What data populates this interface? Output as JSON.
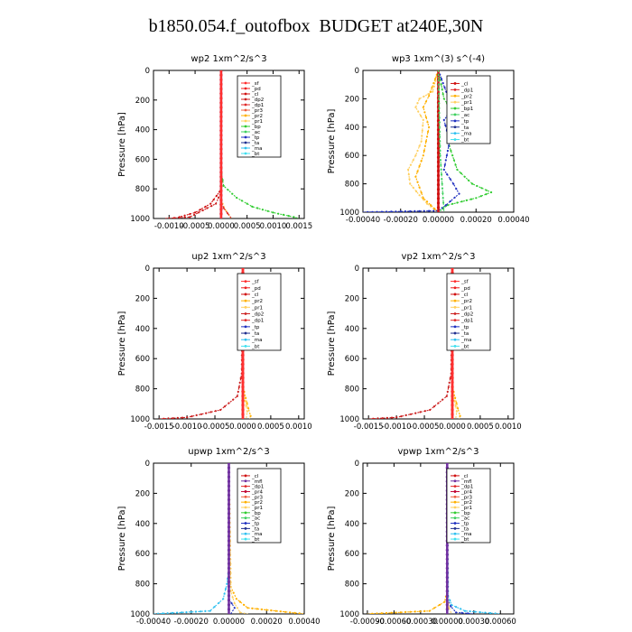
{
  "title": "b1850.054.f_outofbox  BUDGET at240E,30N",
  "colors": {
    "sf": "#ff3030",
    "pd": "#ee2020",
    "cl": "#d01010",
    "mfl": "#7030a0",
    "dp2": "#cc2020",
    "dp1": "#e02828",
    "pr4": "#c00030",
    "pr3": "#ee6040",
    "pr2": "#ffb000",
    "pr1": "#ffd060",
    "bp": "#30cc30",
    "bp1": "#30cc30",
    "ac": "#40d060",
    "tp": "#2030c0",
    "ta": "#203090",
    "ma": "#30c0f0",
    "bt": "#40e0f0"
  },
  "chart_data": [
    {
      "type": "line",
      "title": "wp2   1xm^2/s^3",
      "ylabel": "Pressure  [hPa]",
      "ylim": [
        1000,
        0
      ],
      "xlim": [
        -0.0013,
        0.0016
      ],
      "xticks": [
        -0.001,
        -0.0005,
        0.0,
        0.0005,
        0.001,
        0.0015
      ],
      "xticklabels": [
        "-0.0010",
        "-0.0005",
        "0.0000",
        "0.0005",
        "0.0010",
        "0.0015"
      ],
      "yticks": [
        0,
        200,
        400,
        600,
        800,
        1000
      ],
      "legend_position": "top-right",
      "legend": [
        "_sf",
        "_pd",
        "_cl",
        "_dp2",
        "_dp1",
        "_pr3",
        "_pr2",
        "_pr1",
        "_bp",
        "_ac",
        "_tp",
        "_ta",
        "_ma",
        "_bt"
      ],
      "series": [
        {
          "key": "bp",
          "points": [
            [
              0,
              0
            ],
            [
              0,
              600
            ],
            [
              1e-05,
              700
            ],
            [
              5e-05,
              780
            ],
            [
              0.0003,
              860
            ],
            [
              0.0006,
              920
            ],
            [
              0.001,
              960
            ],
            [
              0.0014,
              990
            ],
            [
              0.0015,
              1000
            ]
          ]
        },
        {
          "key": "pr1",
          "points": [
            [
              0,
              0
            ],
            [
              0,
              850
            ],
            [
              3e-05,
              900
            ],
            [
              0.0001,
              950
            ],
            [
              0.0002,
              1000
            ]
          ]
        },
        {
          "key": "cl",
          "points": [
            [
              0,
              0
            ],
            [
              0,
              780
            ],
            [
              -3e-05,
              820
            ],
            [
              -0.0002,
              900
            ],
            [
              -0.0005,
              960
            ],
            [
              -0.0009,
              1000
            ]
          ]
        },
        {
          "key": "dp2",
          "points": [
            [
              0,
              0
            ],
            [
              0,
              820
            ],
            [
              -0.0001,
              900
            ],
            [
              -0.0006,
              990
            ],
            [
              -0.0011,
              1000
            ]
          ]
        },
        {
          "key": "dp1",
          "points": [
            [
              0,
              0
            ],
            [
              0,
              880
            ],
            [
              5e-05,
              930
            ],
            [
              0.0002,
              1000
            ]
          ]
        },
        {
          "key": "pr3",
          "points": [
            [
              0,
              0
            ],
            [
              0,
              1000
            ]
          ]
        },
        {
          "key": "mfl",
          "points": [
            [
              0,
              0
            ],
            [
              0,
              1000
            ]
          ]
        },
        {
          "key": "sf",
          "points": [
            [
              0,
              0
            ],
            [
              0,
              1000
            ]
          ]
        }
      ]
    },
    {
      "type": "line",
      "title": "wp3   1xm^(3) s^(-4)",
      "ylabel": "Pressure  [hPa]",
      "ylim": [
        1000,
        0
      ],
      "xlim": [
        -0.0004,
        0.0004
      ],
      "xticks": [
        -0.0004,
        -0.0002,
        0.0,
        0.0002,
        0.0004
      ],
      "xticklabels": [
        "-0.00040",
        "-0.00020",
        "0.00000",
        "0.00020",
        "0.00040"
      ],
      "yticks": [
        0,
        200,
        400,
        600,
        800,
        1000
      ],
      "legend_position": "top-right",
      "legend": [
        "_cl",
        "_dp1",
        "_pr2",
        "_pr1",
        "_bp1",
        "_ac",
        "_tp",
        "_ta",
        "_ma",
        "_bt"
      ],
      "series": [
        {
          "key": "pr1",
          "points": [
            [
              0,
              0
            ],
            [
              -3e-05,
              150
            ],
            [
              -0.0001,
              200
            ],
            [
              -0.00012,
              260
            ],
            [
              -8e-05,
              350
            ],
            [
              -9e-05,
              500
            ],
            [
              -0.00012,
              600
            ],
            [
              -0.00016,
              700
            ],
            [
              -0.00015,
              800
            ],
            [
              -0.0001,
              880
            ],
            [
              -6e-05,
              940
            ],
            [
              0,
              1000
            ]
          ]
        },
        {
          "key": "pr2",
          "points": [
            [
              0,
              0
            ],
            [
              -5e-05,
              180
            ],
            [
              -8e-05,
              260
            ],
            [
              -5e-05,
              400
            ],
            [
              -8e-05,
              600
            ],
            [
              -0.00012,
              750
            ],
            [
              -8e-05,
              900
            ],
            [
              0,
              1000
            ]
          ]
        },
        {
          "key": "bp1",
          "points": [
            [
              0,
              0
            ],
            [
              3e-05,
              200
            ],
            [
              8e-05,
              300
            ],
            [
              5e-05,
              500
            ],
            [
              0.0001,
              700
            ],
            [
              0.00018,
              800
            ],
            [
              0.00028,
              860
            ],
            [
              0.0002,
              900
            ],
            [
              5e-05,
              950
            ],
            [
              0,
              1000
            ]
          ]
        },
        {
          "key": "tp",
          "points": [
            [
              0,
              0
            ],
            [
              5e-05,
              180
            ],
            [
              0.0001,
              230
            ],
            [
              3e-05,
              350
            ],
            [
              6e-05,
              500
            ],
            [
              3e-05,
              700
            ],
            [
              8e-05,
              800
            ],
            [
              0.00011,
              870
            ],
            [
              4e-05,
              950
            ],
            [
              0,
              990
            ],
            [
              -0.0004,
              1000
            ]
          ]
        },
        {
          "key": "cl",
          "points": [
            [
              0,
              0
            ],
            [
              0,
              1000
            ]
          ]
        },
        {
          "key": "ac",
          "points": [
            [
              0,
              0
            ],
            [
              1e-05,
              600
            ],
            [
              3e-05,
              1000
            ]
          ]
        }
      ]
    },
    {
      "type": "line",
      "title": "up2   1xm^2/s^3",
      "ylabel": "Pressure  [hPa]",
      "ylim": [
        1000,
        0
      ],
      "xlim": [
        -0.0016,
        0.0011
      ],
      "xticks": [
        -0.0015,
        -0.001,
        -0.0005,
        0.0,
        0.0005,
        0.001
      ],
      "xticklabels": [
        "-0.0015",
        "-0.0010",
        "-0.0005",
        "0.0000",
        "0.0005",
        "0.0010"
      ],
      "yticks": [
        0,
        200,
        400,
        600,
        800,
        1000
      ],
      "legend_position": "top-right",
      "legend": [
        "_sf",
        "_pd",
        "_cl",
        "_pr2",
        "_pr1",
        "_dp2",
        "_dp1",
        "_tp",
        "_ta",
        "_ma",
        "_bt"
      ],
      "series": [
        {
          "key": "dp2",
          "points": [
            [
              0,
              0
            ],
            [
              -2e-05,
              700
            ],
            [
              -0.0001,
              850
            ],
            [
              -0.0004,
              940
            ],
            [
              -0.001,
              990
            ],
            [
              -0.0015,
              1000
            ]
          ]
        },
        {
          "key": "pr2",
          "points": [
            [
              0,
              0
            ],
            [
              0,
              780
            ],
            [
              5e-05,
              860
            ],
            [
              0.0001,
              930
            ],
            [
              0.00014,
              980
            ],
            [
              0.00012,
              1000
            ]
          ]
        },
        {
          "key": "pr1",
          "points": [
            [
              0,
              0
            ],
            [
              0,
              800
            ],
            [
              4e-05,
              880
            ],
            [
              8e-05,
              950
            ],
            [
              6e-05,
              1000
            ]
          ]
        },
        {
          "key": "cl",
          "points": [
            [
              0,
              0
            ],
            [
              0,
              1000
            ]
          ]
        },
        {
          "key": "sf",
          "points": [
            [
              0,
              0
            ],
            [
              0,
              1000
            ]
          ]
        }
      ]
    },
    {
      "type": "line",
      "title": "vp2   1xm^2/s^3",
      "ylabel": "Pressure  [hPa]",
      "ylim": [
        1000,
        0
      ],
      "xlim": [
        -0.0016,
        0.0011
      ],
      "xticks": [
        -0.0015,
        -0.001,
        -0.0005,
        0.0,
        0.0005,
        0.001
      ],
      "xticklabels": [
        "-0.0015",
        "-0.0010",
        "-0.0005",
        "0.0000",
        "0.0005",
        "0.0010"
      ],
      "yticks": [
        0,
        200,
        400,
        600,
        800,
        1000
      ],
      "legend_position": "top-right",
      "legend": [
        "_sf",
        "_pd",
        "_cl",
        "_pr2",
        "_pr1",
        "_dp2",
        "_dp1",
        "_tp",
        "_ta",
        "_ma",
        "_bt"
      ],
      "series": [
        {
          "key": "dp2",
          "points": [
            [
              0,
              0
            ],
            [
              -2e-05,
              700
            ],
            [
              -0.0001,
              850
            ],
            [
              -0.0004,
              940
            ],
            [
              -0.001,
              990
            ],
            [
              -0.0015,
              1000
            ]
          ]
        },
        {
          "key": "pr2",
          "points": [
            [
              0,
              0
            ],
            [
              0,
              780
            ],
            [
              5e-05,
              860
            ],
            [
              0.0001,
              930
            ],
            [
              0.00014,
              980
            ],
            [
              0.00012,
              1000
            ]
          ]
        },
        {
          "key": "pr1",
          "points": [
            [
              0,
              0
            ],
            [
              0,
              800
            ],
            [
              4e-05,
              880
            ],
            [
              8e-05,
              950
            ],
            [
              6e-05,
              1000
            ]
          ]
        },
        {
          "key": "cl",
          "points": [
            [
              0,
              0
            ],
            [
              0,
              1000
            ]
          ]
        },
        {
          "key": "sf",
          "points": [
            [
              0,
              0
            ],
            [
              0,
              1000
            ]
          ]
        }
      ]
    },
    {
      "type": "line",
      "title": "upwp   1xm^2/s^3",
      "ylabel": "Pressure  [hPa]",
      "ylim": [
        1000,
        0
      ],
      "xlim": [
        -0.0004,
        0.0004
      ],
      "xticks": [
        -0.0004,
        -0.0002,
        0.0,
        0.0002,
        0.0004
      ],
      "xticklabels": [
        "-0.00040",
        "-0.00020",
        "0.00000",
        "0.00020",
        "0.00040"
      ],
      "yticks": [
        0,
        200,
        400,
        600,
        800,
        1000
      ],
      "legend_position": "top-right",
      "legend": [
        "_cl",
        "_mfl",
        "_dp1",
        "_pr4",
        "_pr3",
        "_pr2",
        "_pr1",
        "_bp",
        "_ac",
        "_tp",
        "_ta",
        "_ma",
        "_bt"
      ],
      "series": [
        {
          "key": "ma",
          "points": [
            [
              0,
              0
            ],
            [
              0,
              700
            ],
            [
              -1e-05,
              800
            ],
            [
              -3e-05,
              900
            ],
            [
              -0.0001,
              980
            ],
            [
              -0.0004,
              1000
            ]
          ]
        },
        {
          "key": "pr2",
          "points": [
            [
              0,
              0
            ],
            [
              1e-05,
              820
            ],
            [
              4e-05,
              900
            ],
            [
              0.0001,
              960
            ],
            [
              0.0004,
              1000
            ]
          ]
        },
        {
          "key": "pr1",
          "points": [
            [
              0,
              0
            ],
            [
              1e-05,
              850
            ],
            [
              3e-05,
              930
            ],
            [
              6e-05,
              990
            ],
            [
              0.0001,
              1000
            ]
          ]
        },
        {
          "key": "tp",
          "points": [
            [
              0,
              0
            ],
            [
              0,
              900
            ],
            [
              3e-05,
              960
            ],
            [
              1e-05,
              1000
            ]
          ]
        },
        {
          "key": "mfl",
          "points": [
            [
              0,
              0
            ],
            [
              0,
              1000
            ]
          ]
        }
      ]
    },
    {
      "type": "line",
      "title": "vpwp   1xm^2/s^3",
      "ylabel": "Pressure  [hPa]",
      "ylim": [
        1000,
        0
      ],
      "xlim": [
        -0.00095,
        0.00075
      ],
      "xticks": [
        -0.0009,
        -0.0006,
        -0.0003,
        0.0,
        0.0003,
        0.0006
      ],
      "xticklabels": [
        "-0.00090",
        "-0.00060",
        "-0.00030",
        "0.00000",
        "0.00030",
        "0.00060"
      ],
      "yticks": [
        0,
        200,
        400,
        600,
        800,
        1000
      ],
      "legend_position": "top-right",
      "legend": [
        "_cl",
        "_mfl",
        "_dp1",
        "_pr4",
        "_pr3",
        "_pr2",
        "_pr1",
        "_bp",
        "_ac",
        "_tp",
        "_ta",
        "_ma",
        "_bt"
      ],
      "series": [
        {
          "key": "pr2",
          "points": [
            [
              0,
              0
            ],
            [
              0,
              850
            ],
            [
              -3e-05,
              920
            ],
            [
              -0.0002,
              980
            ],
            [
              -0.0009,
              1000
            ]
          ]
        },
        {
          "key": "ma",
          "points": [
            [
              0,
              0
            ],
            [
              1e-05,
              880
            ],
            [
              5e-05,
              940
            ],
            [
              0.0002,
              980
            ],
            [
              0.0006,
              1000
            ]
          ]
        },
        {
          "key": "tp",
          "points": [
            [
              0,
              0
            ],
            [
              0,
              900
            ],
            [
              4e-05,
              950
            ],
            [
              0.0001,
              990
            ],
            [
              0.0003,
              1000
            ]
          ]
        },
        {
          "key": "pr1",
          "points": [
            [
              0,
              0
            ],
            [
              0,
              900
            ],
            [
              2e-05,
              960
            ],
            [
              5e-05,
              1000
            ]
          ]
        },
        {
          "key": "mfl",
          "points": [
            [
              0,
              0
            ],
            [
              0,
              1000
            ]
          ]
        }
      ]
    }
  ]
}
